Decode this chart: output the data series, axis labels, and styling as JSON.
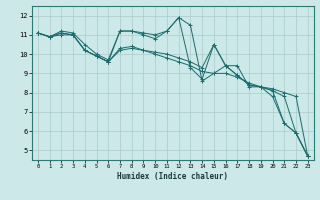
{
  "title": "",
  "xlabel": "Humidex (Indice chaleur)",
  "ylabel": "",
  "bg_color": "#cce8e8",
  "grid_color": "#aacccc",
  "line_color": "#1a6b6b",
  "xlim": [
    -0.5,
    23.5
  ],
  "ylim": [
    4.5,
    12.5
  ],
  "xticks": [
    0,
    1,
    2,
    3,
    4,
    5,
    6,
    7,
    8,
    9,
    10,
    11,
    12,
    13,
    14,
    15,
    16,
    17,
    18,
    19,
    20,
    21,
    22,
    23
  ],
  "yticks": [
    5,
    6,
    7,
    8,
    9,
    10,
    11,
    12
  ],
  "series": [
    {
      "x": [
        0,
        1,
        2,
        3,
        4,
        5,
        6,
        7,
        8,
        9,
        10,
        11,
        12,
        13,
        14,
        15,
        16,
        17,
        18,
        19,
        20,
        21,
        22,
        23
      ],
      "y": [
        11.1,
        10.9,
        11.2,
        11.1,
        10.5,
        10.0,
        9.7,
        11.2,
        11.2,
        11.1,
        11.0,
        11.2,
        11.9,
        11.5,
        8.6,
        9.0,
        9.4,
        9.4,
        8.3,
        8.3,
        7.8,
        6.4,
        5.9,
        4.7
      ]
    },
    {
      "x": [
        0,
        1,
        2,
        3,
        4,
        5,
        6,
        7,
        8,
        9,
        10,
        11,
        12,
        13,
        14,
        15,
        16,
        17,
        18,
        19,
        20,
        21,
        22,
        23
      ],
      "y": [
        11.1,
        10.9,
        11.0,
        11.0,
        10.2,
        9.9,
        9.6,
        10.2,
        10.3,
        10.2,
        10.0,
        9.8,
        9.6,
        9.4,
        9.1,
        9.0,
        9.0,
        8.8,
        8.5,
        8.3,
        8.2,
        8.0,
        7.8,
        4.7
      ]
    },
    {
      "x": [
        0,
        1,
        2,
        3,
        4,
        5,
        6,
        7,
        8,
        9,
        10,
        11,
        12,
        13,
        14,
        15,
        16,
        17,
        18,
        19,
        20,
        21,
        22,
        23
      ],
      "y": [
        11.1,
        10.9,
        11.1,
        11.0,
        10.2,
        9.9,
        9.6,
        10.3,
        10.4,
        10.2,
        10.1,
        10.0,
        9.8,
        9.6,
        9.3,
        10.5,
        9.4,
        8.9,
        8.4,
        8.3,
        8.1,
        7.8,
        5.9,
        4.7
      ]
    },
    {
      "x": [
        0,
        1,
        2,
        3,
        4,
        5,
        6,
        7,
        8,
        9,
        10,
        11,
        12,
        13,
        14,
        15,
        16,
        17,
        18,
        19,
        20,
        21,
        22,
        23
      ],
      "y": [
        11.1,
        10.9,
        11.1,
        11.0,
        10.2,
        9.9,
        9.6,
        11.2,
        11.2,
        11.0,
        10.8,
        11.2,
        11.9,
        9.3,
        8.7,
        10.5,
        9.4,
        8.9,
        8.4,
        8.3,
        8.1,
        6.4,
        5.9,
        4.7
      ]
    }
  ]
}
